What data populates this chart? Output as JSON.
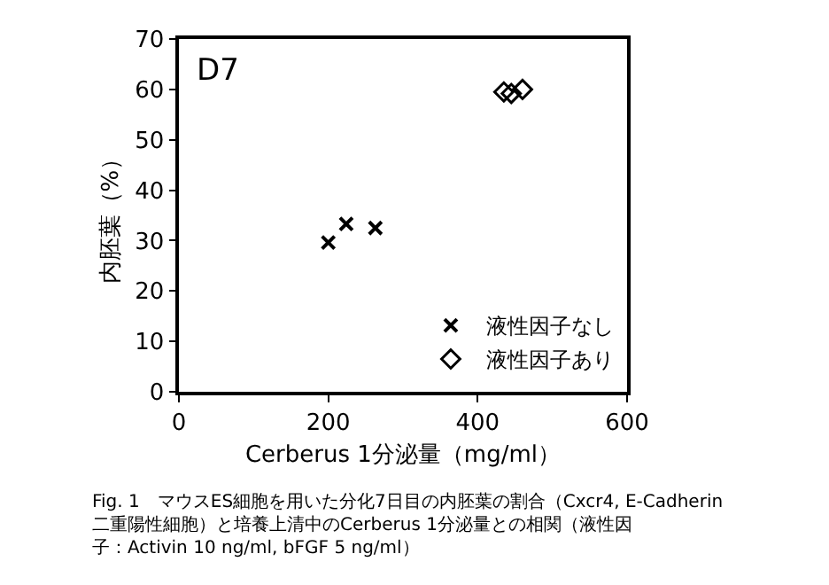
{
  "chart_data": {
    "type": "scatter",
    "xlabel": "Cerberus 1分泌量（mg/ml）",
    "ylabel": "内胚葉（%）",
    "annotations": [
      "D7",
      "Fig. 1　マウスES細胞を用いた分化7日目の内胚葉の割合（Cxcr4, E-Cadherin二重陽性細胞）と培養上清中のCerberus 1分泌量との相関（液性因子：Activin 10 ng/ml, bFGF 5 ng/ml）"
    ],
    "series": [
      {
        "name": "液性因子なし",
        "color": "#000000",
        "marker": "cross",
        "x": [
          200,
          224,
          263
        ],
        "values": [
          29.6,
          33.3,
          32.5
        ]
      },
      {
        "name": "液性因子あり",
        "color": "#000000",
        "marker": "diamond",
        "x": [
          435,
          445,
          460
        ],
        "values": [
          59.5,
          59.2,
          60.0
        ]
      }
    ],
    "xlim": [
      0,
      600
    ],
    "xticks": [
      0,
      200,
      400,
      600
    ],
    "ylim": [
      0,
      70
    ],
    "yticks": [
      0,
      10,
      20,
      30,
      40,
      50,
      60,
      70
    ],
    "legend": "bottom right"
  }
}
